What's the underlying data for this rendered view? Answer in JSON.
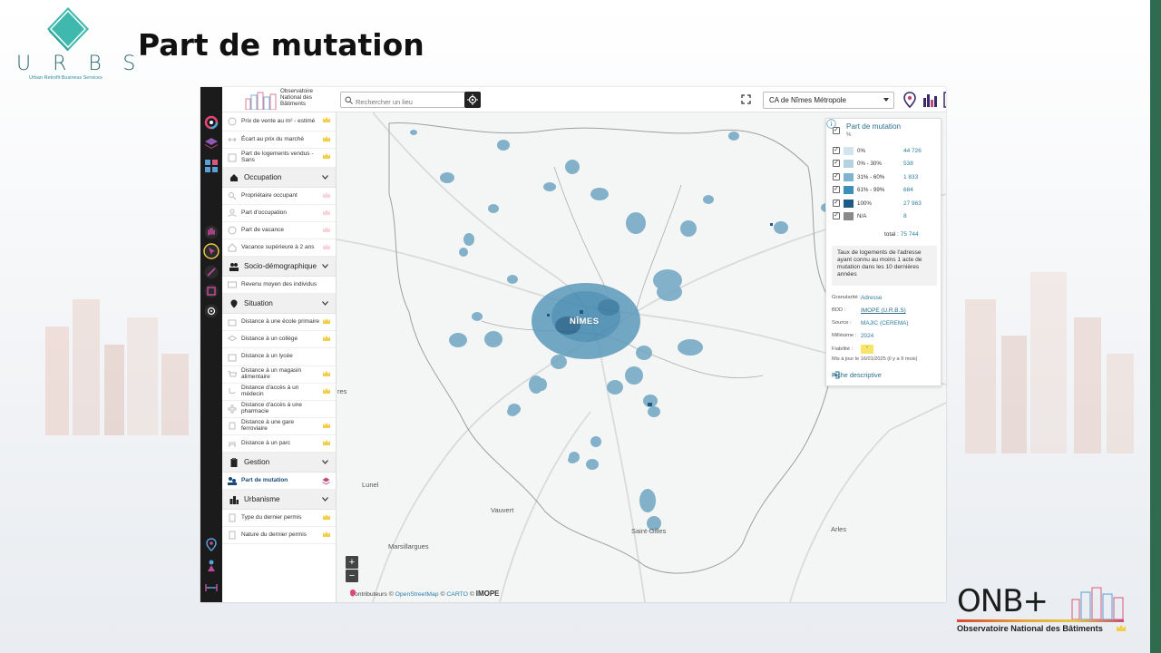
{
  "slide": {
    "title": "Part de mutation",
    "urbs_letters": "URBS",
    "urbs_subtitle": "Urban Retrofit Business Services",
    "onb_logo_text": "ONB+",
    "onb_logo_subtitle": "Observatoire National des Bâtiments",
    "accent_color": "#2f6b4f"
  },
  "app": {
    "header": {
      "brand_lines": [
        "Observatoire",
        "National des",
        "Bâtiments"
      ],
      "search_placeholder": "Rechercher un lieu",
      "territory_selected": "CA de Nîmes Métropole",
      "icons": [
        "pin-plus-icon",
        "bar-chart-icon",
        "building-search-icon"
      ]
    },
    "toolbar_icons": [
      "layers-target-icon",
      "stack-icon",
      "grid-icon",
      "hand-icon",
      "pointer-icon",
      "ruler-icon",
      "polygon-icon",
      "target-icon",
      "map-pin-icon",
      "person-pin-icon",
      "distance-icon"
    ],
    "sidebar": {
      "top_items": [
        {
          "label": "Prix de vente au m² - estimé"
        },
        {
          "label": "Écart au prix du marché"
        },
        {
          "label": "Part de logements vendus - Sans"
        }
      ],
      "sections": [
        {
          "title": "Occupation",
          "items": [
            "Propriétaire occupant",
            "Part d'occupation",
            "Part de vacance",
            "Vacance supérieure à 2 ans"
          ]
        },
        {
          "title": "Socio-démographique",
          "items": [
            "Revenu moyen des individus"
          ]
        },
        {
          "title": "Situation",
          "items": [
            "Distance à une école primaire",
            "Distance à un collège",
            "Distance à un lycée",
            "Distance à un magasin alimentaire",
            "Distance d'accès à un médecin",
            "Distance d'accès à une pharmacie",
            "Distance à une gare ferroviaire",
            "Distance à un parc"
          ]
        },
        {
          "title": "Gestion",
          "items": [
            "Part de mutation"
          ]
        },
        {
          "title": "Urbanisme",
          "items": [
            "Type du dernier permis",
            "Nature du dernier permis"
          ]
        }
      ]
    },
    "map": {
      "cities": {
        "nimes": "NÎMES",
        "lunel": "Lunel",
        "marsillargues": "Marsillargues",
        "vauvert": "Vauvert",
        "saint_gilles": "Saint-Gilles",
        "arles": "Arles",
        "left_edge": "res"
      },
      "zoom_in": "+",
      "zoom_out": "−",
      "attribution": {
        "prefix": "Contributeurs ©",
        "osm": "OpenStreetMap",
        "sep": "©",
        "carto": "CARTO",
        "sep2": "©",
        "imope": "IMOPE"
      }
    },
    "legend": {
      "title": "Part de mutation",
      "unit": "%",
      "classes": [
        {
          "label": "0%",
          "value": "44 726",
          "color": "#cfe6ec"
        },
        {
          "label": "0% - 30%",
          "value": "538",
          "color": "#b7d2df"
        },
        {
          "label": "31% - 60%",
          "value": "1 833",
          "color": "#7fb3cf"
        },
        {
          "label": "61% - 99%",
          "value": "684",
          "color": "#3c8fb8"
        },
        {
          "label": "100%",
          "value": "27 963",
          "color": "#1d5a86"
        },
        {
          "label": "N/A",
          "value": "8",
          "color": "#8a8a8a"
        }
      ],
      "total_label": "total :",
      "total_value": "75 744",
      "description": "Taux de logements de l'adresse ayant connu au moins 1 acte de mutation dans les 10 dernières années",
      "meta": [
        {
          "key": "Granularité :",
          "value": "Adresse"
        },
        {
          "key": "BDD :",
          "value": "IMOPE (U.R.B.S)"
        },
        {
          "key": "Source :",
          "value": "MAJIC (CEREMA)"
        },
        {
          "key": "Millésime :",
          "value": "2024"
        },
        {
          "key": "Fiabilité :",
          "value": "-"
        }
      ],
      "updated": "Mis à jour le 16/01/2025 (il y a 9 mois)",
      "fiche_label": "Fiche descriptive"
    }
  }
}
